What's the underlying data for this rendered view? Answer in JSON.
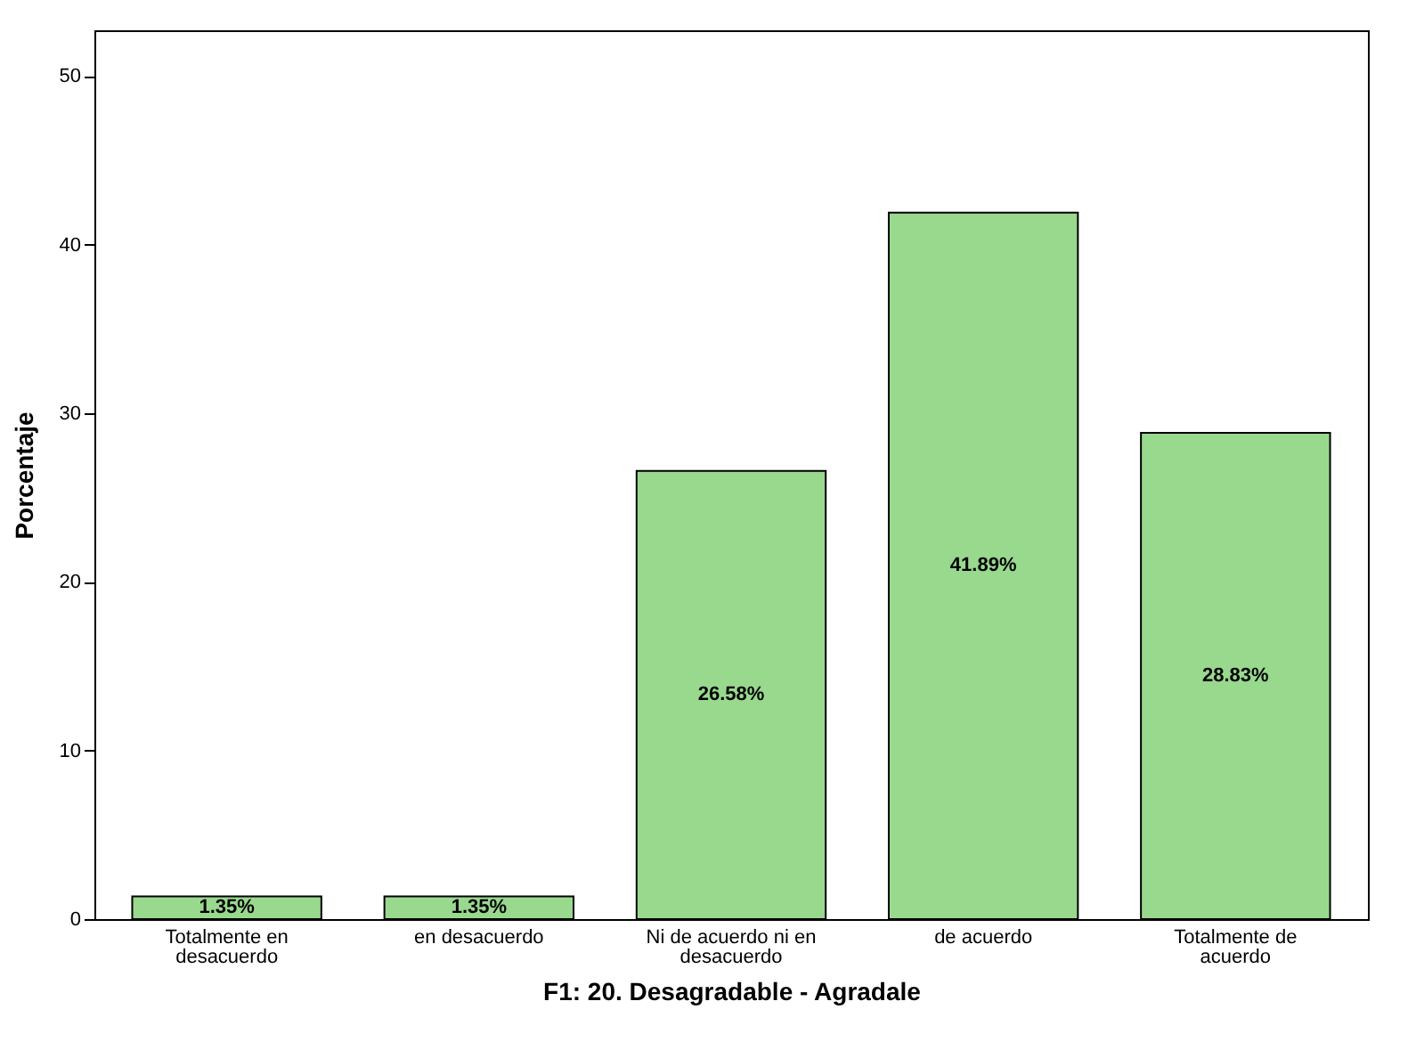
{
  "chart_data": {
    "type": "bar",
    "xlabel": "F1:  20. Desagradable  - Agradale",
    "ylabel": "Porcentaje",
    "categories": [
      "Totalmente en desacuerdo",
      "en desacuerdo",
      "Ni de acuerdo ni en desacuerdo",
      "de acuerdo",
      "Totalmente de acuerdo"
    ],
    "values": [
      1.35,
      1.35,
      26.58,
      41.89,
      28.83
    ],
    "value_labels": [
      "1.35%",
      "1.35%",
      "26.58%",
      "41.89%",
      "28.83%"
    ],
    "color": "#98d98e",
    "ylim": [
      0,
      52.7
    ],
    "yticks": [
      0,
      10,
      20,
      30,
      40,
      50
    ],
    "grid": false
  }
}
